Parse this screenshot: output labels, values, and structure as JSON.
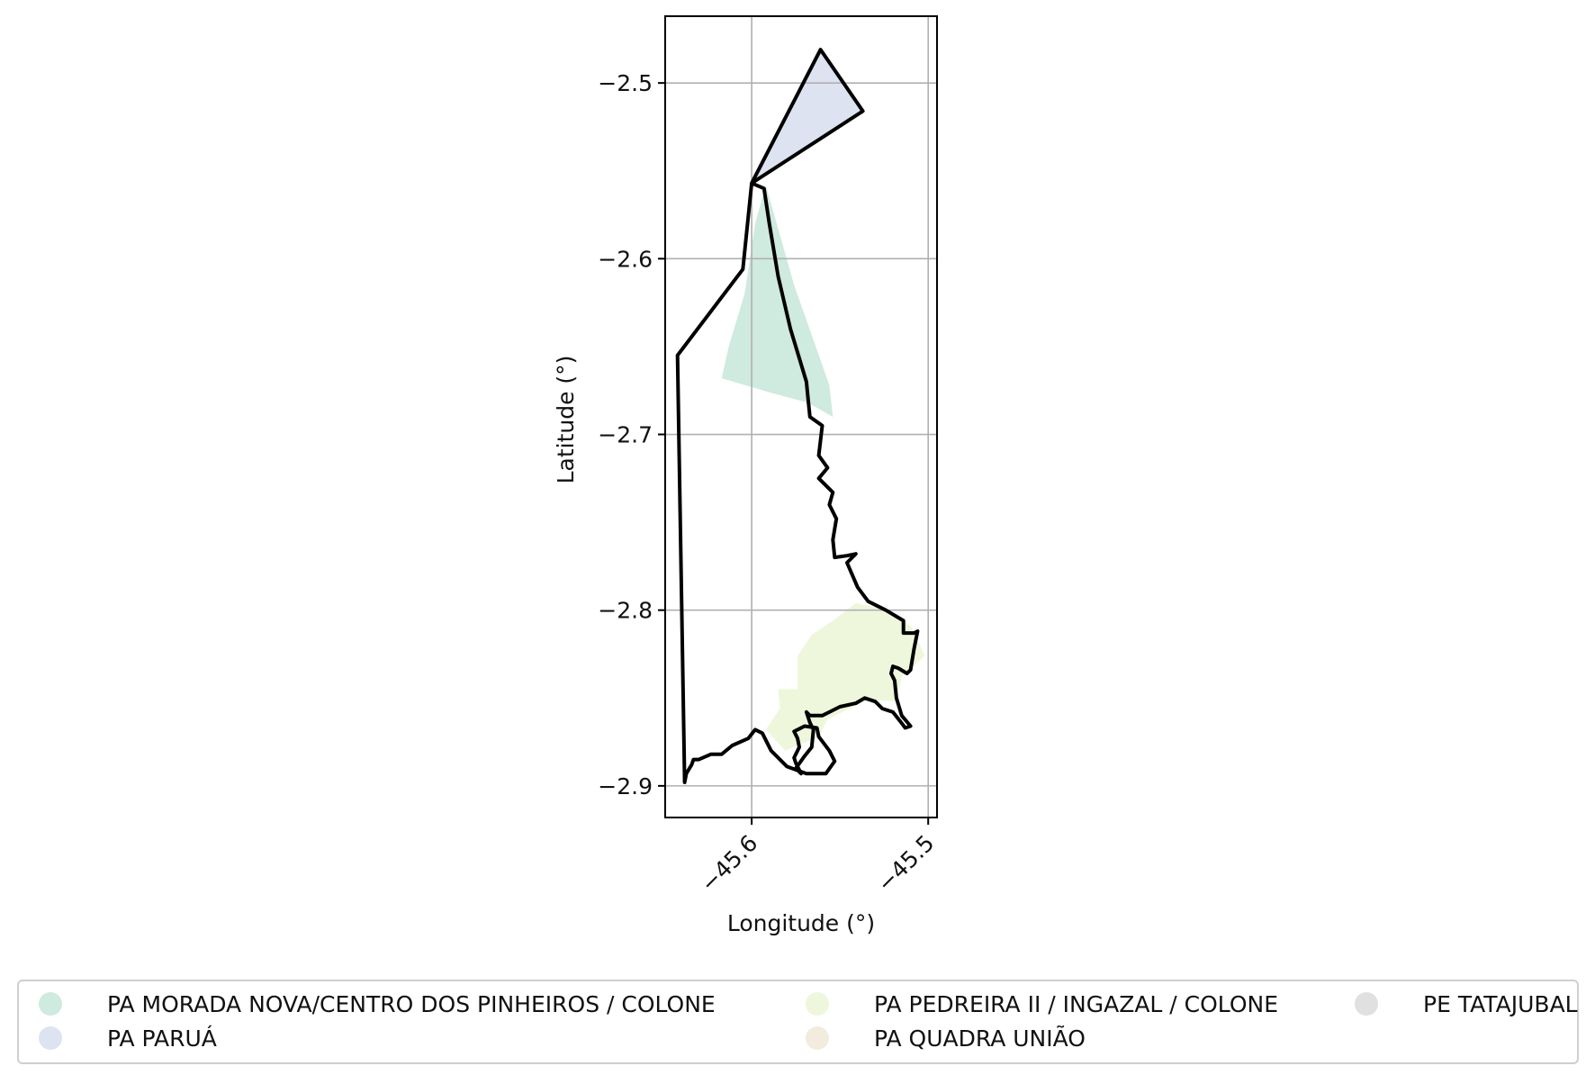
{
  "map": {
    "xlabel": "Longitude (°)",
    "ylabel": "Latitude (°)",
    "x_ticks": [
      -45.6,
      -45.5
    ],
    "y_ticks": [
      -2.5,
      -2.6,
      -2.7,
      -2.8,
      -2.9
    ],
    "x_tick_labels": [
      "−45.6",
      "−45.5"
    ],
    "y_tick_labels": [
      "−2.5",
      "−2.6",
      "−2.7",
      "−2.8",
      "−2.9"
    ],
    "xlim": [
      -45.649,
      -45.495
    ],
    "ylim": [
      -2.918,
      -2.462
    ],
    "grid": true,
    "boundary_color": "#000000",
    "regions": [
      {
        "name": "PA MORADA NOVA/CENTRO DOS PINHEIROS / COLONE",
        "color": "#cfeadf",
        "polygon": [
          [
            -45.592,
            -2.558
          ],
          [
            -45.576,
            -2.615
          ],
          [
            -45.556,
            -2.672
          ],
          [
            -45.554,
            -2.69
          ],
          [
            -45.568,
            -2.682
          ],
          [
            -45.59,
            -2.676
          ],
          [
            -45.617,
            -2.668
          ],
          [
            -45.613,
            -2.65
          ],
          [
            -45.604,
            -2.62
          ],
          [
            -45.598,
            -2.58
          ],
          [
            -45.592,
            -2.558
          ]
        ]
      },
      {
        "name": "PA PARUÁ",
        "color": "#dde3f0",
        "polygon": [
          [
            -45.6,
            -2.557
          ],
          [
            -45.561,
            -2.481
          ],
          [
            -45.537,
            -2.516
          ],
          [
            -45.56,
            -2.531
          ],
          [
            -45.6,
            -2.557
          ]
        ]
      },
      {
        "name": "PA PEDREIRA II / INGAZAL / COLONE",
        "color": "#eef7dc",
        "polygon": [
          [
            -45.592,
            -2.868
          ],
          [
            -45.584,
            -2.856
          ],
          [
            -45.585,
            -2.845
          ],
          [
            -45.574,
            -2.845
          ],
          [
            -45.574,
            -2.826
          ],
          [
            -45.566,
            -2.814
          ],
          [
            -45.554,
            -2.806
          ],
          [
            -45.541,
            -2.796
          ],
          [
            -45.522,
            -2.8
          ],
          [
            -45.509,
            -2.81
          ],
          [
            -45.502,
            -2.826
          ],
          [
            -45.515,
            -2.838
          ],
          [
            -45.518,
            -2.852
          ],
          [
            -45.534,
            -2.851
          ],
          [
            -45.557,
            -2.862
          ],
          [
            -45.562,
            -2.872
          ],
          [
            -45.581,
            -2.88
          ],
          [
            -45.592,
            -2.868
          ]
        ]
      }
    ],
    "boundary": [
      [
        -45.6,
        -2.557
      ],
      [
        -45.561,
        -2.481
      ],
      [
        -45.537,
        -2.516
      ],
      [
        -45.56,
        -2.531
      ],
      [
        -45.6,
        -2.557
      ],
      [
        -45.593,
        -2.56
      ],
      [
        -45.59,
        -2.58
      ],
      [
        -45.585,
        -2.61
      ],
      [
        -45.578,
        -2.64
      ],
      [
        -45.569,
        -2.67
      ],
      [
        -45.568,
        -2.68
      ],
      [
        -45.567,
        -2.69
      ],
      [
        -45.56,
        -2.695
      ],
      [
        -45.562,
        -2.712
      ],
      [
        -45.557,
        -2.719
      ],
      [
        -45.562,
        -2.725
      ],
      [
        -45.554,
        -2.733
      ],
      [
        -45.556,
        -2.74
      ],
      [
        -45.552,
        -2.748
      ],
      [
        -45.554,
        -2.76
      ],
      [
        -45.553,
        -2.77
      ],
      [
        -45.546,
        -2.769
      ],
      [
        -45.541,
        -2.768
      ],
      [
        -45.546,
        -2.773
      ],
      [
        -45.54,
        -2.787
      ],
      [
        -45.534,
        -2.795
      ],
      [
        -45.524,
        -2.8
      ],
      [
        -45.514,
        -2.806
      ],
      [
        -45.514,
        -2.813
      ],
      [
        -45.508,
        -2.813
      ],
      [
        -45.506,
        -2.812
      ],
      [
        -45.508,
        -2.822
      ],
      [
        -45.51,
        -2.834
      ],
      [
        -45.512,
        -2.836
      ],
      [
        -45.517,
        -2.833
      ],
      [
        -45.52,
        -2.832
      ],
      [
        -45.521,
        -2.836
      ],
      [
        -45.519,
        -2.84
      ],
      [
        -45.518,
        -2.85
      ],
      [
        -45.515,
        -2.86
      ],
      [
        -45.51,
        -2.866
      ],
      [
        -45.513,
        -2.867
      ],
      [
        -45.516,
        -2.863
      ],
      [
        -45.52,
        -2.858
      ],
      [
        -45.526,
        -2.856
      ],
      [
        -45.53,
        -2.852
      ],
      [
        -45.536,
        -2.85
      ],
      [
        -45.541,
        -2.853
      ],
      [
        -45.55,
        -2.855
      ],
      [
        -45.556,
        -2.858
      ],
      [
        -45.56,
        -2.86
      ],
      [
        -45.567,
        -2.86
      ],
      [
        -45.569,
        -2.858
      ],
      [
        -45.567,
        -2.864
      ],
      [
        -45.565,
        -2.868
      ],
      [
        -45.566,
        -2.878
      ],
      [
        -45.57,
        -2.883
      ],
      [
        -45.575,
        -2.89
      ],
      [
        -45.572,
        -2.893
      ],
      [
        -45.575,
        -2.887
      ],
      [
        -45.576,
        -2.884
      ],
      [
        -45.573,
        -2.878
      ],
      [
        -45.574,
        -2.873
      ],
      [
        -45.576,
        -2.869
      ],
      [
        -45.57,
        -2.866
      ],
      [
        -45.563,
        -2.867
      ],
      [
        -45.562,
        -2.872
      ],
      [
        -45.556,
        -2.88
      ],
      [
        -45.553,
        -2.886
      ],
      [
        -45.558,
        -2.893
      ],
      [
        -45.569,
        -2.893
      ],
      [
        -45.58,
        -2.889
      ],
      [
        -45.589,
        -2.88
      ],
      [
        -45.594,
        -2.87
      ],
      [
        -45.598,
        -2.868
      ],
      [
        -45.602,
        -2.873
      ],
      [
        -45.611,
        -2.877
      ],
      [
        -45.617,
        -2.882
      ],
      [
        -45.623,
        -2.882
      ],
      [
        -45.63,
        -2.885
      ],
      [
        -45.633,
        -2.885
      ],
      [
        -45.634,
        -2.888
      ],
      [
        -45.637,
        -2.893
      ],
      [
        -45.638,
        -2.898
      ],
      [
        -45.642,
        -2.655
      ],
      [
        -45.605,
        -2.606
      ],
      [
        -45.6,
        -2.557
      ]
    ]
  },
  "legend": {
    "items": [
      {
        "label": "PA MORADA NOVA/CENTRO DOS PINHEIROS / COLONE",
        "color": "#cfeadf"
      },
      {
        "label": "PA PARUÁ",
        "color": "#dde3f0"
      },
      {
        "label": "PA PEDREIRA II / INGAZAL / COLONE",
        "color": "#eef7dc"
      },
      {
        "label": "PA QUADRA UNIÃO",
        "color": "#f3ebdd"
      },
      {
        "label": "PE TATAJUBAL",
        "color": "#e0e0e0"
      }
    ]
  }
}
